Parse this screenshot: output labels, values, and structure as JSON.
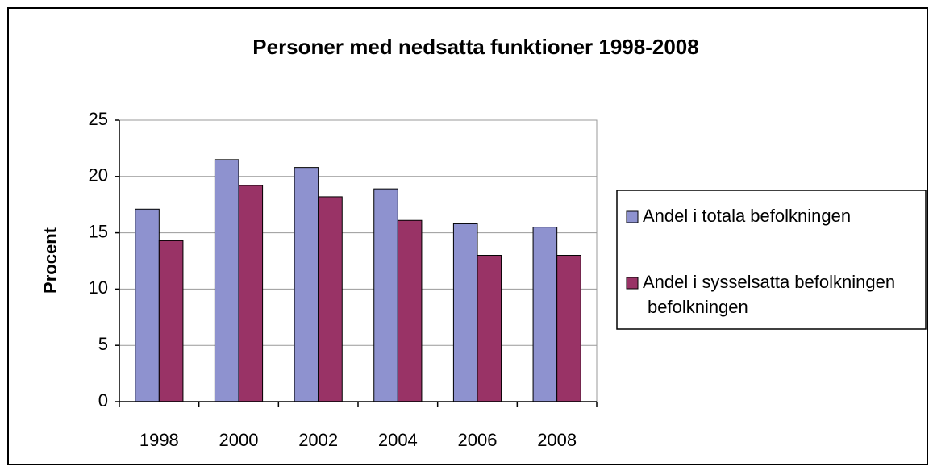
{
  "chart_data": {
    "type": "bar",
    "title": "Personer med nedsatta funktioner 1998-2008",
    "ylabel": "Procent",
    "categories": [
      "1998",
      "2000",
      "2002",
      "2004",
      "2006",
      "2008"
    ],
    "series": [
      {
        "name": "Andel i totala befolkningen",
        "color": "#8E92CF",
        "values": [
          17.1,
          21.5,
          20.8,
          18.9,
          15.8,
          15.5
        ]
      },
      {
        "name": "Andel i sysselsatta befolkningen befolkningen",
        "color": "#993366",
        "values": [
          14.3,
          19.2,
          18.2,
          16.1,
          13.0,
          13.0
        ]
      }
    ],
    "ylim": [
      0,
      25
    ],
    "yticks": [
      0,
      5,
      10,
      15,
      20,
      25
    ],
    "grid": true,
    "legend": "right"
  }
}
